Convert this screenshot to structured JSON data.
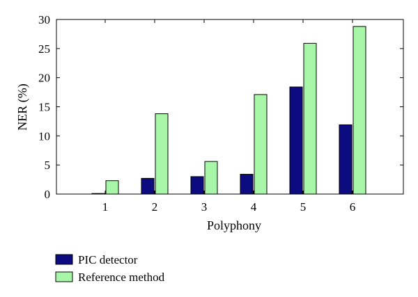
{
  "chart_data": {
    "type": "bar",
    "title": "",
    "xlabel": "Polyphony",
    "ylabel": "NER (%)",
    "categories": [
      "1",
      "2",
      "3",
      "4",
      "5",
      "6"
    ],
    "ylim": [
      0,
      30
    ],
    "yticks": [
      0,
      5,
      10,
      15,
      20,
      25,
      30
    ],
    "grid": false,
    "legend_position": "bottom-left, below plot",
    "series": [
      {
        "name": "PIC detector",
        "color": "#0c0c80",
        "values": [
          0.1,
          2.7,
          3.0,
          3.4,
          18.4,
          11.9
        ]
      },
      {
        "name": "Reference method",
        "color": "#a8f7a8",
        "values": [
          2.3,
          13.8,
          5.6,
          17.1,
          25.9,
          28.8
        ]
      }
    ]
  }
}
